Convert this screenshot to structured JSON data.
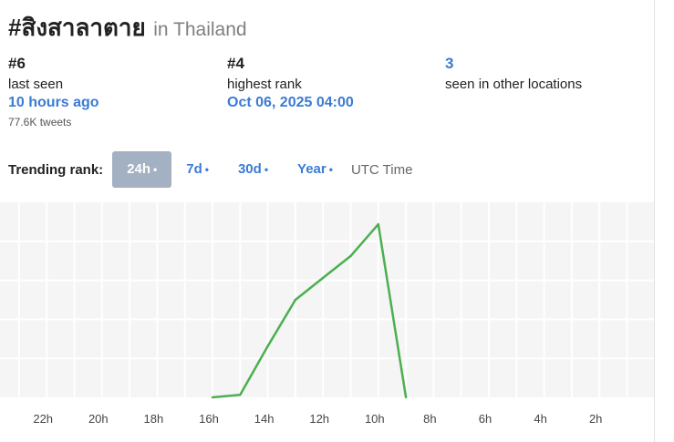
{
  "header": {
    "hashtag": "#สิงสาลาตาย",
    "location": "in Thailand"
  },
  "stats": {
    "last_seen": {
      "rank": "#6",
      "label": "last seen",
      "value": "10 hours ago",
      "tweets": "77.6K tweets"
    },
    "highest": {
      "rank": "#4",
      "label": "highest rank",
      "value": "Oct 06, 2025 04:00"
    },
    "other_locations": {
      "count": "3",
      "label": "seen in other locations"
    }
  },
  "trending": {
    "label": "Trending rank:",
    "tabs": [
      {
        "label": "24h",
        "dot": "•",
        "active": true
      },
      {
        "label": "7d",
        "dot": "•",
        "active": false
      },
      {
        "label": "30d",
        "dot": "•",
        "active": false
      },
      {
        "label": "Year",
        "dot": "•",
        "active": false
      }
    ],
    "utc_label": "UTC Time"
  },
  "colors": {
    "line": "#4caf50",
    "accent": "#3a7bd5",
    "active_tab": "#a3b1c2",
    "grid_bg": "#f5f5f5"
  },
  "chart_data": {
    "type": "line",
    "x_ticks": [
      "22h",
      "20h",
      "18h",
      "16h",
      "14h",
      "12h",
      "10h",
      "8h",
      "6h",
      "4h",
      "2h"
    ],
    "x": [
      "16h",
      "15h",
      "14h",
      "13h",
      "12h",
      "11h",
      "10h",
      "9h"
    ],
    "series": [
      {
        "values": [
          50,
          49,
          29,
          10,
          1,
          -8,
          -21,
          50
        ]
      }
    ],
    "ylim": [
      -30,
      50
    ],
    "grid": true
  }
}
